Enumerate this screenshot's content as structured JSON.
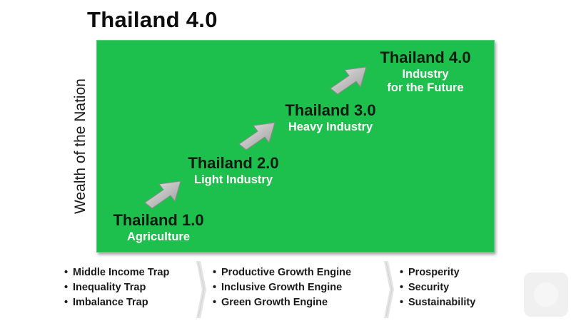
{
  "title": "Thailand 4.0",
  "y_axis_label": "Wealth of the Nation",
  "stages": [
    {
      "name": "Thailand 1.0",
      "desc": "Agriculture"
    },
    {
      "name": "Thailand 2.0",
      "desc": "Light Industry"
    },
    {
      "name": "Thailand 3.0",
      "desc": "Heavy Industry"
    },
    {
      "name": "Thailand 4.0",
      "desc_line1": "Industry",
      "desc_line2": "for the Future"
    }
  ],
  "columns": [
    {
      "items": [
        "Middle Income Trap",
        "Inequality Trap",
        "Imbalance Trap"
      ]
    },
    {
      "items": [
        "Productive Growth Engine",
        "Inclusive Growth Engine",
        "Green Growth Engine"
      ]
    },
    {
      "items": [
        "Prosperity",
        "Security",
        "Sustainability"
      ]
    }
  ],
  "bullet": "•",
  "colors": {
    "panel": "#1dc04d",
    "stage_name": "#0b1b10",
    "stage_desc": "#ffffff",
    "arrow": "#c8c8c8"
  },
  "icons": [
    "up-right-arrow-icon",
    "chevron-right-icon",
    "circle-icon"
  ]
}
